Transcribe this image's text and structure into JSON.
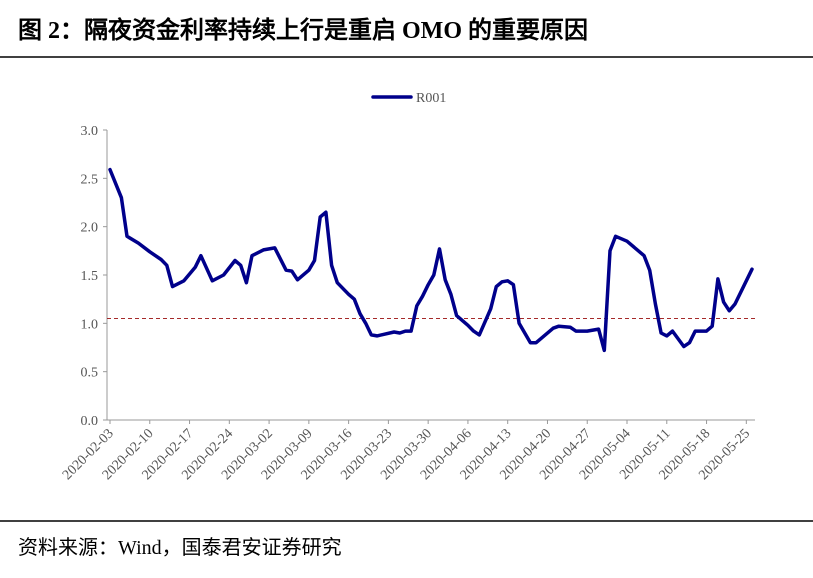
{
  "title": "图 2：隔夜资金利率持续上行是重启 OMO 的重要原因",
  "source": "资料来源：Wind，国泰君安证券研究",
  "chart_data": {
    "type": "line",
    "x": [
      "2020-02-03",
      "2020-02-05",
      "2020-02-06",
      "2020-02-08",
      "2020-02-10",
      "2020-02-12",
      "2020-02-13",
      "2020-02-14",
      "2020-02-16",
      "2020-02-18",
      "2020-02-19",
      "2020-02-21",
      "2020-02-23",
      "2020-02-25",
      "2020-02-26",
      "2020-02-27",
      "2020-02-28",
      "2020-03-01",
      "2020-03-03",
      "2020-03-05",
      "2020-03-06",
      "2020-03-07",
      "2020-03-09",
      "2020-03-10",
      "2020-03-11",
      "2020-03-12",
      "2020-03-13",
      "2020-03-14",
      "2020-03-16",
      "2020-03-17",
      "2020-03-18",
      "2020-03-19",
      "2020-03-20",
      "2020-03-21",
      "2020-03-24",
      "2020-03-25",
      "2020-03-26",
      "2020-03-27",
      "2020-03-28",
      "2020-03-29",
      "2020-03-30",
      "2020-03-31",
      "2020-04-01",
      "2020-04-02",
      "2020-04-03",
      "2020-04-04",
      "2020-04-06",
      "2020-04-07",
      "2020-04-08",
      "2020-04-10",
      "2020-04-11",
      "2020-04-12",
      "2020-04-13",
      "2020-04-14",
      "2020-04-15",
      "2020-04-17",
      "2020-04-18",
      "2020-04-21",
      "2020-04-22",
      "2020-04-24",
      "2020-04-25",
      "2020-04-27",
      "2020-04-29",
      "2020-04-30",
      "2020-05-01",
      "2020-05-02",
      "2020-05-04",
      "2020-05-07",
      "2020-05-08",
      "2020-05-09",
      "2020-05-10",
      "2020-05-11",
      "2020-05-12",
      "2020-05-14",
      "2020-05-15",
      "2020-05-16",
      "2020-05-18",
      "2020-05-19",
      "2020-05-20",
      "2020-05-21",
      "2020-05-22",
      "2020-05-23",
      "2020-05-26"
    ],
    "series": [
      {
        "name": "R001",
        "color": "#00008b",
        "values": [
          2.59,
          2.3,
          1.9,
          1.83,
          1.74,
          1.66,
          1.6,
          1.38,
          1.44,
          1.58,
          1.7,
          1.44,
          1.5,
          1.65,
          1.6,
          1.42,
          1.7,
          1.76,
          1.78,
          1.55,
          1.54,
          1.45,
          1.55,
          1.65,
          2.1,
          2.15,
          1.6,
          1.42,
          1.3,
          1.25,
          1.1,
          1.0,
          0.88,
          0.87,
          0.91,
          0.9,
          0.92,
          0.92,
          1.18,
          1.28,
          1.4,
          1.5,
          1.77,
          1.45,
          1.3,
          1.08,
          0.98,
          0.92,
          0.88,
          1.15,
          1.38,
          1.43,
          1.44,
          1.4,
          1.0,
          0.8,
          0.8,
          0.95,
          0.97,
          0.96,
          0.92,
          0.92,
          0.94,
          0.72,
          1.75,
          1.9,
          1.85,
          1.7,
          1.55,
          1.2,
          0.9,
          0.87,
          0.92,
          0.76,
          0.8,
          0.92,
          0.92,
          0.97,
          1.46,
          1.22,
          1.13,
          1.2,
          1.56
        ]
      }
    ],
    "xlim": [
      "2020-02-03",
      "2020-05-26"
    ],
    "xticks": [
      "2020-02-03",
      "2020-02-10",
      "2020-02-17",
      "2020-02-24",
      "2020-03-02",
      "2020-03-09",
      "2020-03-16",
      "2020-03-23",
      "2020-03-30",
      "2020-04-06",
      "2020-04-13",
      "2020-04-20",
      "2020-04-27",
      "2020-05-04",
      "2020-05-11",
      "2020-05-18",
      "2020-05-25"
    ],
    "ylim": [
      0,
      3
    ],
    "yticks": [
      {
        "value": 0,
        "label": "0.0"
      },
      {
        "value": 0.5,
        "label": "0.5"
      },
      {
        "value": 1,
        "label": "1.0"
      },
      {
        "value": 1.5,
        "label": "1.5"
      },
      {
        "value": 2,
        "label": "2.0"
      },
      {
        "value": 2.5,
        "label": "2.5"
      },
      {
        "value": 3,
        "label": "3.0"
      }
    ],
    "reference_line": {
      "value": 1.05,
      "color": "#a52a2a"
    },
    "legend": "top"
  }
}
